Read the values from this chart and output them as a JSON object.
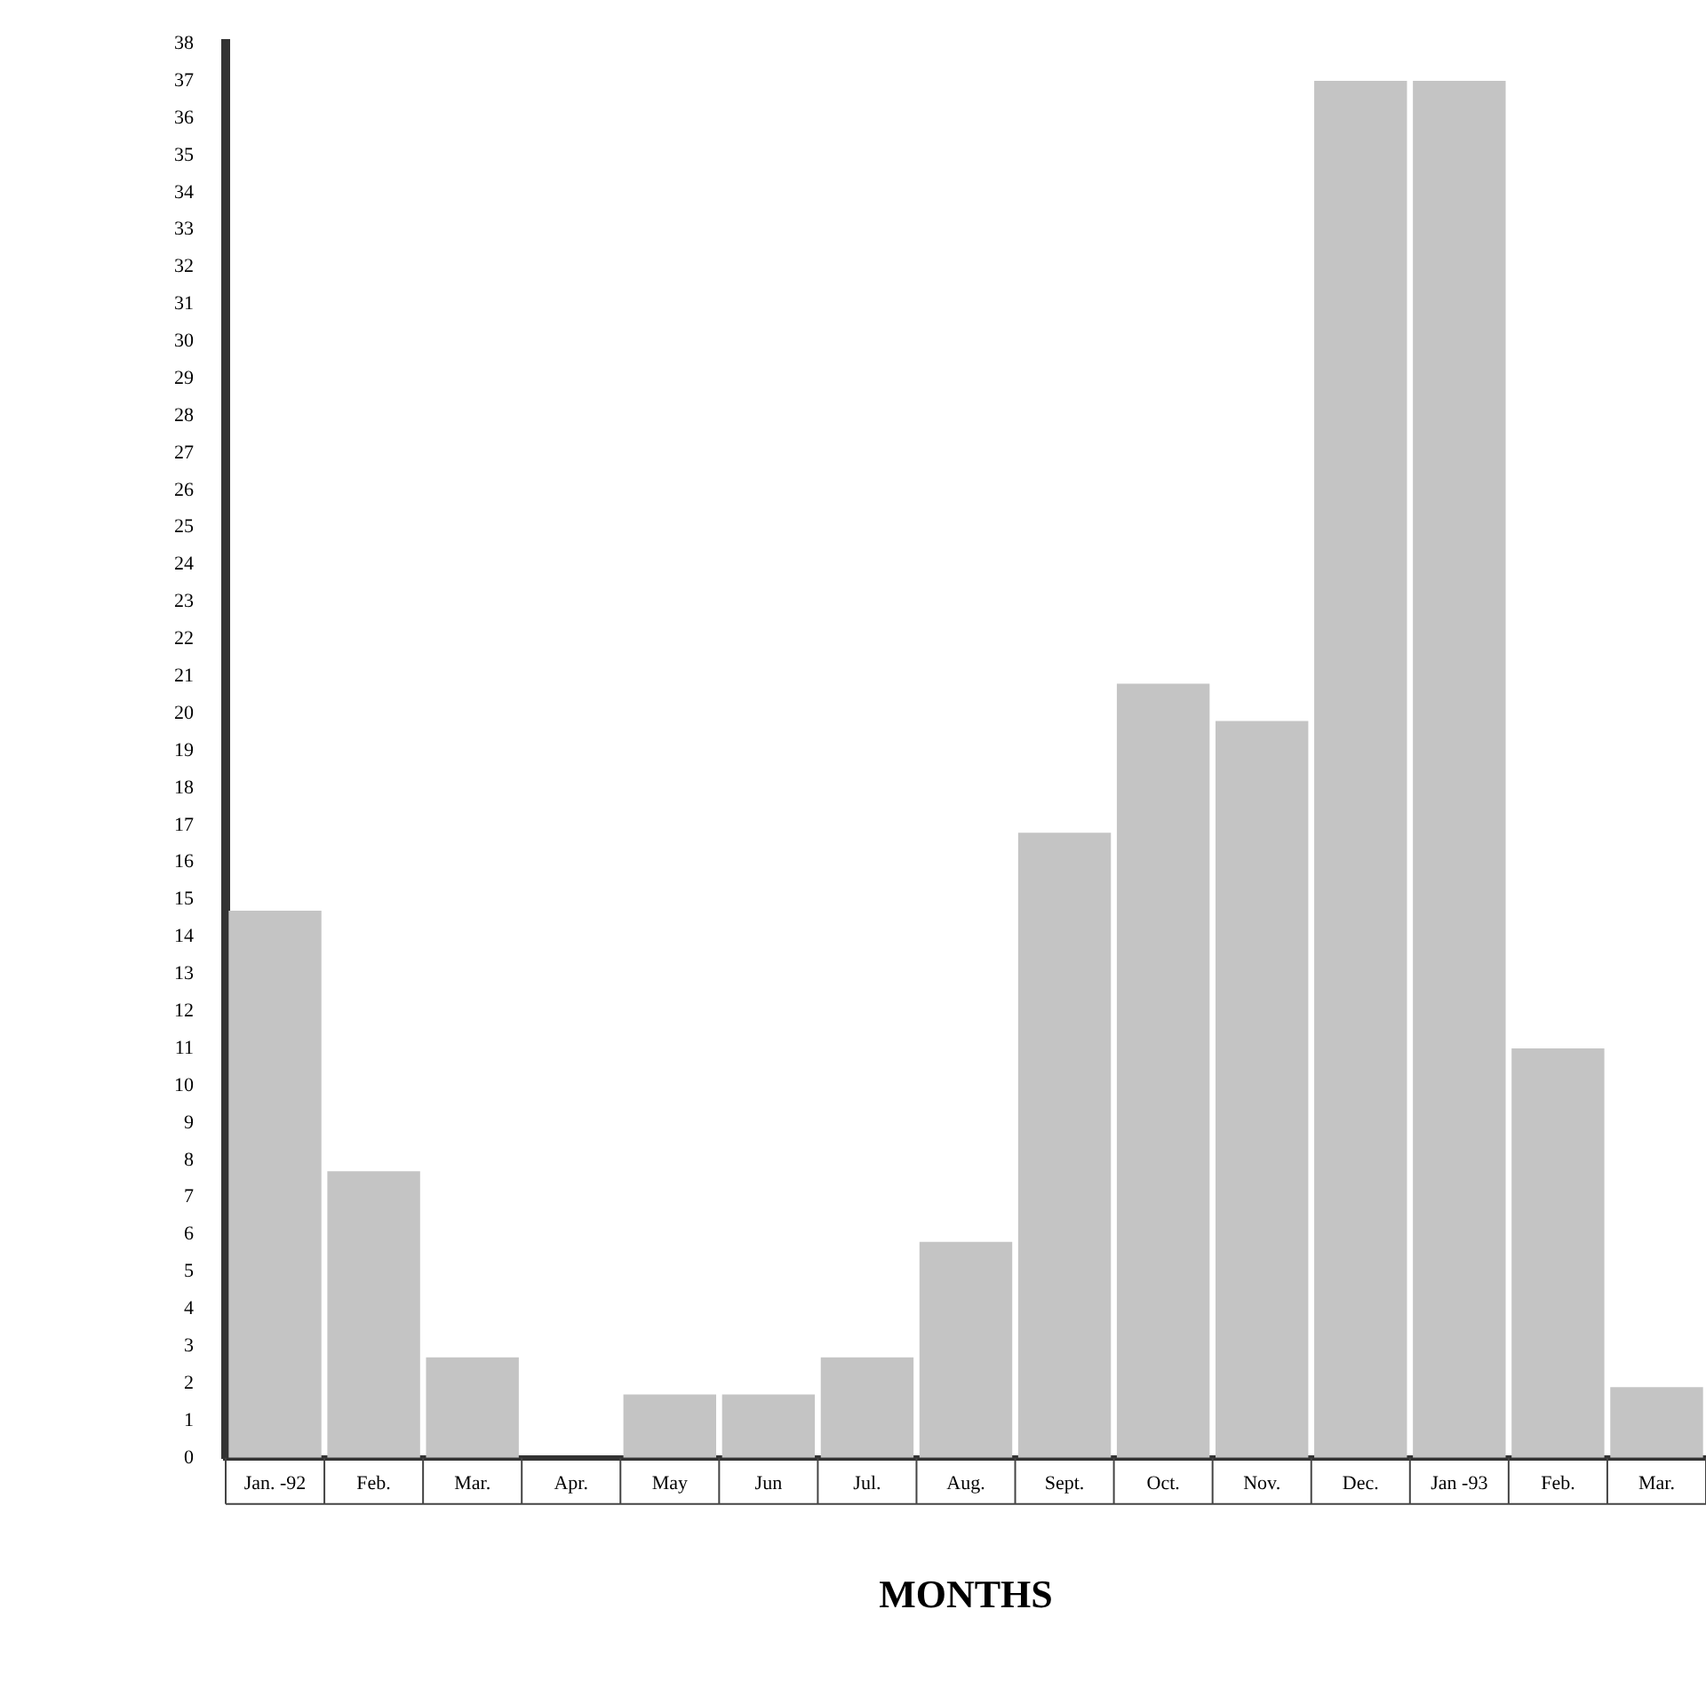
{
  "chart_data": {
    "type": "bar",
    "xlabel": "MONTHS",
    "categories": [
      "Jan. -92",
      "Feb.",
      "Mar.",
      "Apr.",
      "May",
      "Jun",
      "Jul.",
      "Aug.",
      "Sept.",
      "Oct.",
      "Nov.",
      "Dec.",
      "Jan -93",
      "Feb.",
      "Mar."
    ],
    "values": [
      14.7,
      7.7,
      2.7,
      0,
      1.7,
      1.7,
      2.7,
      5.8,
      16.8,
      20.8,
      19.8,
      37,
      37,
      11,
      1.9
    ],
    "color": "#c4c4c4",
    "ylim": [
      0,
      38
    ],
    "yticks": [
      0,
      1,
      2,
      3,
      4,
      5,
      6,
      7,
      8,
      9,
      10,
      11,
      12,
      13,
      14,
      15,
      16,
      17,
      18,
      19,
      20,
      21,
      22,
      23,
      24,
      25,
      26,
      27,
      28,
      29,
      30,
      31,
      32,
      33,
      34,
      35,
      36,
      37,
      38
    ],
    "grid": false,
    "legend": false
  }
}
